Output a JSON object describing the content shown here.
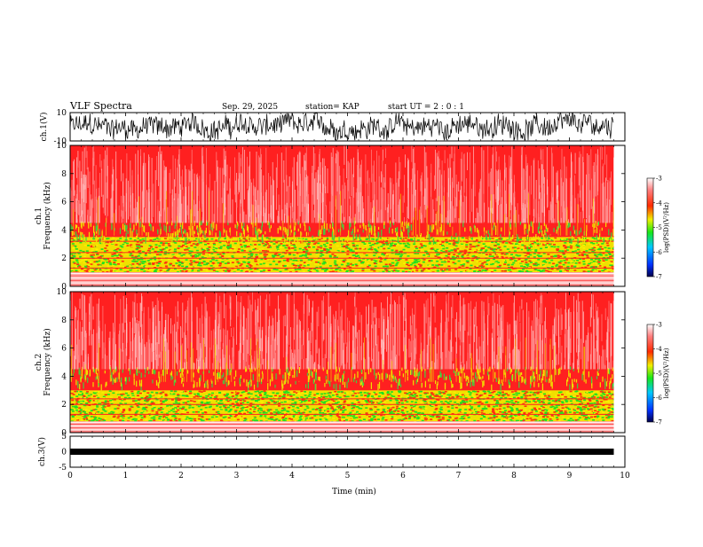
{
  "header": {
    "title": "VLF Spectra",
    "date": "Sep. 29, 2025",
    "station": "station= KAP",
    "start_ut": "start  UT =   2 : 0  : 1"
  },
  "colors": {
    "waveform": "#000000",
    "colormap": [
      "#00004b",
      "#0030ff",
      "#00c8ff",
      "#18e818",
      "#f0f000",
      "#ff2a00",
      "#ff8080",
      "#ffffff"
    ],
    "dominant_spectrogram": "#ff2020"
  },
  "chart_data": [
    {
      "type": "line",
      "panel": "ch1-waveform",
      "ylabel": "ch.1(V)",
      "ylim": [
        -10,
        10
      ],
      "y_ticks": [
        "10",
        "-10"
      ],
      "xlim": [
        0,
        10
      ],
      "data_end_min": 9.8,
      "description_values": "dense oscillation filling roughly -9 to +9 V"
    },
    {
      "type": "heatmap",
      "panel": "ch1-spectrogram",
      "ylabel": "ch.1\nFrequency (kHz)",
      "ylabel_lines": [
        "ch.1",
        "Frequency  (kHz)"
      ],
      "ylim": [
        0,
        10
      ],
      "y_ticks": [
        "0",
        "2",
        "4",
        "6",
        "8",
        "10"
      ],
      "xlim": [
        0,
        10
      ],
      "data_end_min": 9.8,
      "bands_khz": [
        {
          "from": 0,
          "to": 1.0,
          "level": -3.0
        },
        {
          "from": 1.0,
          "to": 3.5,
          "level": -4.8
        },
        {
          "from": 3.5,
          "to": 4.5,
          "level": -4.0
        },
        {
          "from": 4.5,
          "to": 10,
          "level": -3.4
        }
      ],
      "colorbar": {
        "label": "log(PSD)(V²/Hz)",
        "range": [
          -7,
          -3
        ],
        "ticks": [
          "-3",
          "-4",
          "-5",
          "-6",
          "-7"
        ]
      }
    },
    {
      "type": "heatmap",
      "panel": "ch2-spectrogram",
      "ylabel": "ch.2\nFrequency (kHz)",
      "ylabel_lines": [
        "ch.2",
        "Frequency  (kHz)"
      ],
      "ylim": [
        0,
        10
      ],
      "y_ticks": [
        "0",
        "2",
        "4",
        "6",
        "8",
        "10"
      ],
      "xlim": [
        0,
        10
      ],
      "data_end_min": 9.8,
      "bands_khz": [
        {
          "from": 0,
          "to": 0.8,
          "level": -3.0
        },
        {
          "from": 0.8,
          "to": 3.0,
          "level": -4.8
        },
        {
          "from": 3.0,
          "to": 4.5,
          "level": -4.0
        },
        {
          "from": 4.5,
          "to": 10,
          "level": -3.4
        }
      ],
      "colorbar": {
        "label": "log(PSD)(V²/Hz)",
        "range": [
          -7,
          -3
        ],
        "ticks": [
          "-3",
          "-4",
          "-5",
          "-6",
          "-7"
        ]
      }
    },
    {
      "type": "line",
      "panel": "ch3-waveform",
      "ylabel": "ch.3(V)",
      "ylim": [
        -5,
        5
      ],
      "y_ticks": [
        "5",
        "0",
        "-5"
      ],
      "xlim": [
        0,
        10
      ],
      "data_end_min": 9.8,
      "level_v": 0,
      "xlabel": "Time  (min)",
      "x_ticks": [
        "0",
        "1",
        "2",
        "3",
        "4",
        "5",
        "6",
        "7",
        "8",
        "9",
        "10"
      ]
    }
  ]
}
